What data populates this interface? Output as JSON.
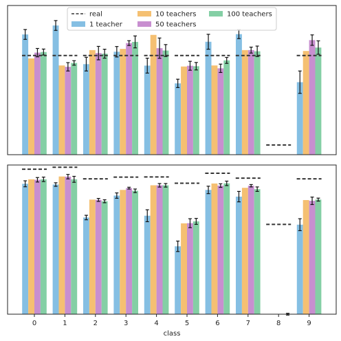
{
  "chart_data": [
    {
      "type": "bar",
      "categories": [
        "0",
        "1",
        "2",
        "3",
        "4",
        "5",
        "6",
        "7",
        "8",
        "9"
      ],
      "ylim": [
        0,
        1
      ],
      "series": [
        {
          "name": "1 teacher",
          "color": "#85bfe3",
          "values": [
            0.806,
            0.866,
            0.607,
            0.69,
            0.597,
            0.478,
            0.757,
            0.808,
            0.0,
            0.486
          ],
          "errors": [
            0.033,
            0.033,
            0.046,
            0.035,
            0.05,
            0.028,
            0.05,
            0.03,
            0.0,
            0.075
          ]
        },
        {
          "name": "10 teachers",
          "color": "#f5c072",
          "values": [
            0.645,
            0.598,
            0.701,
            0.709,
            0.803,
            0.591,
            0.598,
            0.701,
            0.0,
            0.695
          ]
        },
        {
          "name": "50 teachers",
          "color": "#c88fd0",
          "values": [
            0.684,
            0.589,
            0.681,
            0.748,
            0.714,
            0.596,
            0.579,
            0.701,
            0.0,
            0.768
          ],
          "errors": [
            0.028,
            0.028,
            0.045,
            0.016,
            0.068,
            0.03,
            0.028,
            0.02,
            0.0,
            0.035
          ]
        },
        {
          "name": "100 teachers",
          "color": "#84cfa5",
          "values": [
            0.688,
            0.615,
            0.677,
            0.756,
            0.698,
            0.593,
            0.632,
            0.693,
            0.0,
            0.718
          ],
          "errors": [
            0.02,
            0.015,
            0.03,
            0.04,
            0.04,
            0.025,
            0.02,
            0.035,
            0.0,
            0.045
          ]
        },
        {
          "name": "real",
          "style": "dashed",
          "color": "#333333",
          "values": [
            0.665,
            0.665,
            0.665,
            0.665,
            0.665,
            0.665,
            0.665,
            0.665,
            0.065,
            0.665
          ]
        }
      ],
      "legend_location": "top-center"
    },
    {
      "type": "bar",
      "categories": [
        "0",
        "1",
        "2",
        "3",
        "4",
        "5",
        "6",
        "7",
        "8",
        "9"
      ],
      "xlabel": "class",
      "ylim": [
        0,
        1
      ],
      "series": [
        {
          "name": "1 teacher",
          "color": "#85bfe3",
          "values": [
            0.874,
            0.869,
            0.648,
            0.795,
            0.66,
            0.455,
            0.833,
            0.788,
            0.0,
            0.6
          ],
          "errors": [
            0.02,
            0.012,
            0.015,
            0.018,
            0.04,
            0.035,
            0.025,
            0.035,
            0.0,
            0.04
          ]
        },
        {
          "name": "10 teachers",
          "color": "#f5c072",
          "values": [
            0.904,
            0.923,
            0.768,
            0.833,
            0.864,
            0.609,
            0.876,
            0.847,
            0.0,
            0.765
          ]
        },
        {
          "name": "50 teachers",
          "color": "#c88fd0",
          "values": [
            0.901,
            0.922,
            0.766,
            0.845,
            0.864,
            0.61,
            0.862,
            0.861,
            0.0,
            0.76
          ],
          "errors": [
            0.015,
            0.015,
            0.01,
            0.006,
            0.012,
            0.03,
            0.012,
            0.008,
            0.0,
            0.025
          ]
        },
        {
          "name": "100 teachers",
          "color": "#84cfa5",
          "values": [
            0.904,
            0.904,
            0.757,
            0.827,
            0.864,
            0.622,
            0.877,
            0.838,
            0.0,
            0.768
          ],
          "errors": [
            0.015,
            0.02,
            0.01,
            0.012,
            0.012,
            0.02,
            0.015,
            0.015,
            0.006,
            0.01
          ]
        },
        {
          "name": "real",
          "style": "dashed",
          "color": "#333333",
          "values": [
            0.972,
            0.985,
            0.907,
            0.919,
            0.92,
            0.878,
            0.945,
            0.912,
            0.602,
            0.907
          ]
        }
      ]
    }
  ]
}
